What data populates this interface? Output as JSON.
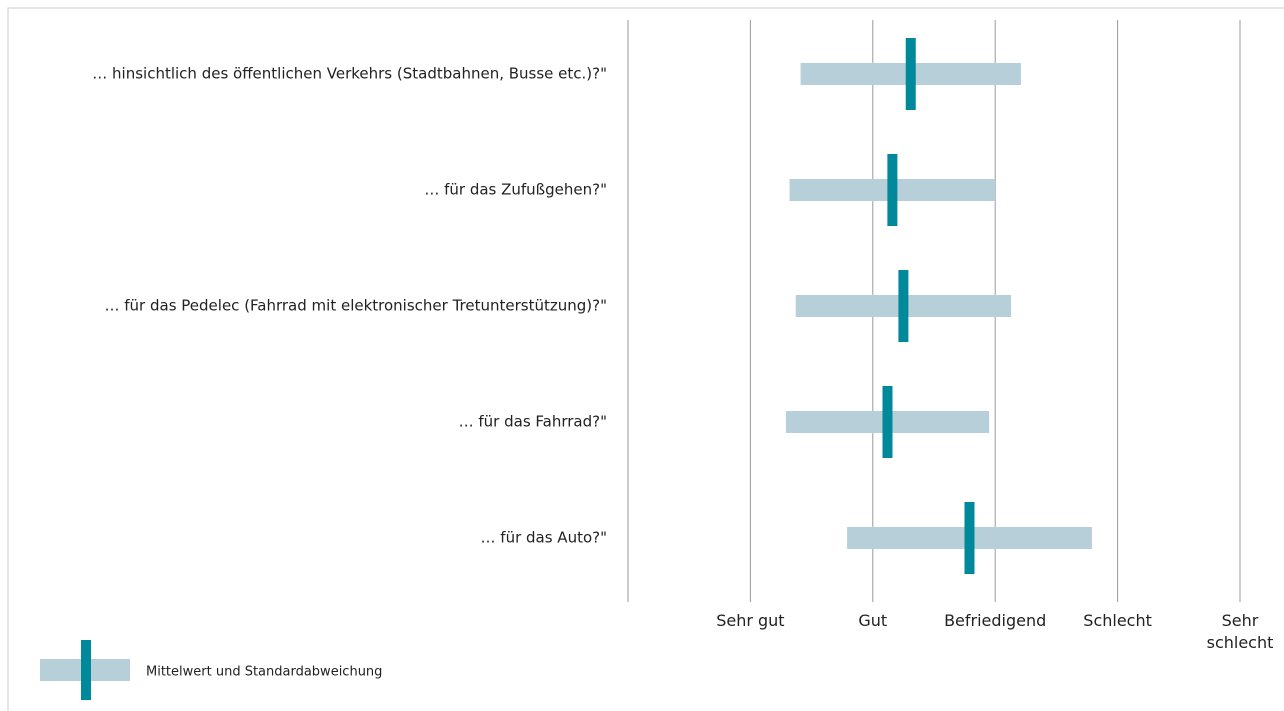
{
  "chart_data": {
    "type": "errorbar",
    "categories": [
      "… hinsichtlich des öffentlichen Verkehrs (Stadtbahnen, Busse etc.)?\"",
      "… für das Zufußgehen?\"",
      "… für das Pedelec (Fahrrad mit elektronischer Tretunterstützung)?\"",
      "… für das Fahrrad?\"",
      "… für das Auto?\""
    ],
    "series": [
      {
        "name": "Mittelwert und Standardabweichung",
        "color": "#00899a",
        "error_color": "#b7cfd8",
        "values": [
          2.31,
          2.16,
          2.25,
          2.12,
          2.79
        ],
        "sd": [
          0.9,
          0.84,
          0.88,
          0.83,
          1.0
        ]
      }
    ],
    "xlim": [
      0,
      5
    ],
    "xticks": [
      {
        "value": 1,
        "label": "Sehr gut"
      },
      {
        "value": 2,
        "label": "Gut"
      },
      {
        "value": 3,
        "label": "Befriedigend"
      },
      {
        "value": 4,
        "label": "Schlecht"
      },
      {
        "value": 5,
        "label": "Sehr schlecht"
      }
    ],
    "grid": true
  }
}
